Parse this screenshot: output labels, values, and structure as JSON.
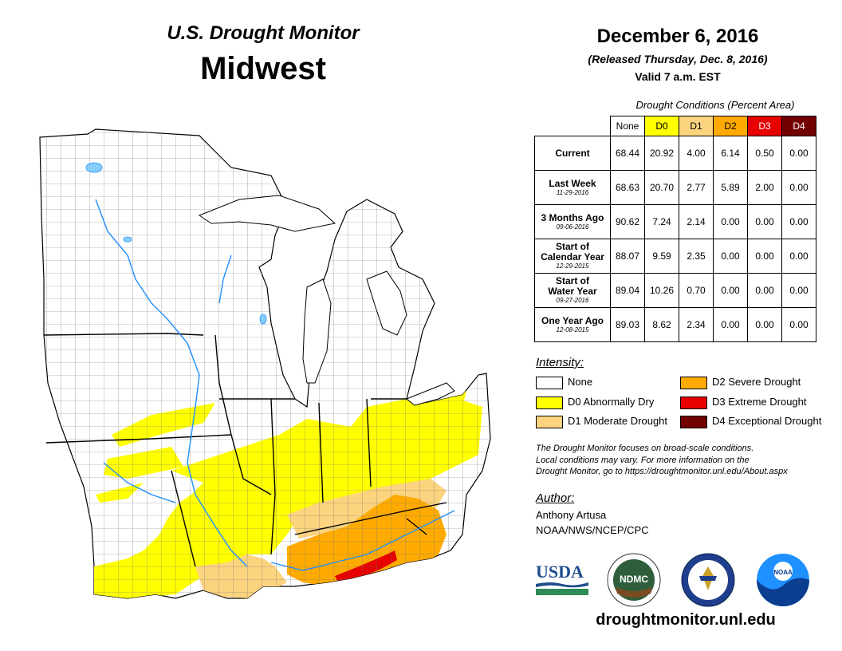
{
  "header": {
    "title_top": "U.S. Drought Monitor",
    "title_main": "Midwest",
    "date": "December 6, 2016",
    "released": "(Released Thursday, Dec. 8, 2016)",
    "valid": "Valid 7 a.m. EST"
  },
  "conditions": {
    "title": "Drought Conditions (Percent Area)",
    "columns": [
      "None",
      "D0",
      "D1",
      "D2",
      "D3",
      "D4"
    ],
    "column_colors": [
      "#ffffff",
      "#ffff00",
      "#fcd37f",
      "#ffaa00",
      "#e60000",
      "#730000"
    ],
    "rows": [
      {
        "label": "Current",
        "sub": "",
        "values": [
          "68.44",
          "20.92",
          "4.00",
          "6.14",
          "0.50",
          "0.00"
        ]
      },
      {
        "label": "Last Week",
        "sub": "11-29-2016",
        "values": [
          "68.63",
          "20.70",
          "2.77",
          "5.89",
          "2.00",
          "0.00"
        ]
      },
      {
        "label": "3 Months Ago",
        "sub": "09-06-2016",
        "values": [
          "90.62",
          "7.24",
          "2.14",
          "0.00",
          "0.00",
          "0.00"
        ]
      },
      {
        "label": "Start of\nCalendar Year",
        "sub": "12-29-2015",
        "values": [
          "88.07",
          "9.59",
          "2.35",
          "0.00",
          "0.00",
          "0.00"
        ]
      },
      {
        "label": "Start of\nWater Year",
        "sub": "09-27-2016",
        "values": [
          "89.04",
          "10.26",
          "0.70",
          "0.00",
          "0.00",
          "0.00"
        ]
      },
      {
        "label": "One Year Ago",
        "sub": "12-08-2015",
        "values": [
          "89.03",
          "8.62",
          "2.34",
          "0.00",
          "0.00",
          "0.00"
        ]
      }
    ]
  },
  "intensity": {
    "title": "Intensity:",
    "items": [
      {
        "label": "None",
        "color": "#ffffff"
      },
      {
        "label": "D0 Abnormally Dry",
        "color": "#ffff00"
      },
      {
        "label": "D1 Moderate Drought",
        "color": "#fcd37f"
      },
      {
        "label": "D2 Severe Drought",
        "color": "#ffaa00"
      },
      {
        "label": "D3 Extreme Drought",
        "color": "#e60000"
      },
      {
        "label": "D4 Exceptional Drought",
        "color": "#730000"
      }
    ]
  },
  "note": {
    "line1": "The Drought Monitor focuses on broad-scale conditions.",
    "line2": "Local conditions may vary. For more information on the",
    "line3": "Drought Monitor, go to https://droughtmonitor.unl.edu/About.aspx"
  },
  "author": {
    "label": "Author:",
    "name": "Anthony Artusa",
    "org": "NOAA/NWS/NCEP/CPC"
  },
  "logos": {
    "usda": "USDA",
    "ndmc": "NDMC",
    "noaa": "NOAA"
  },
  "website": "droughtmonitor.unl.edu"
}
